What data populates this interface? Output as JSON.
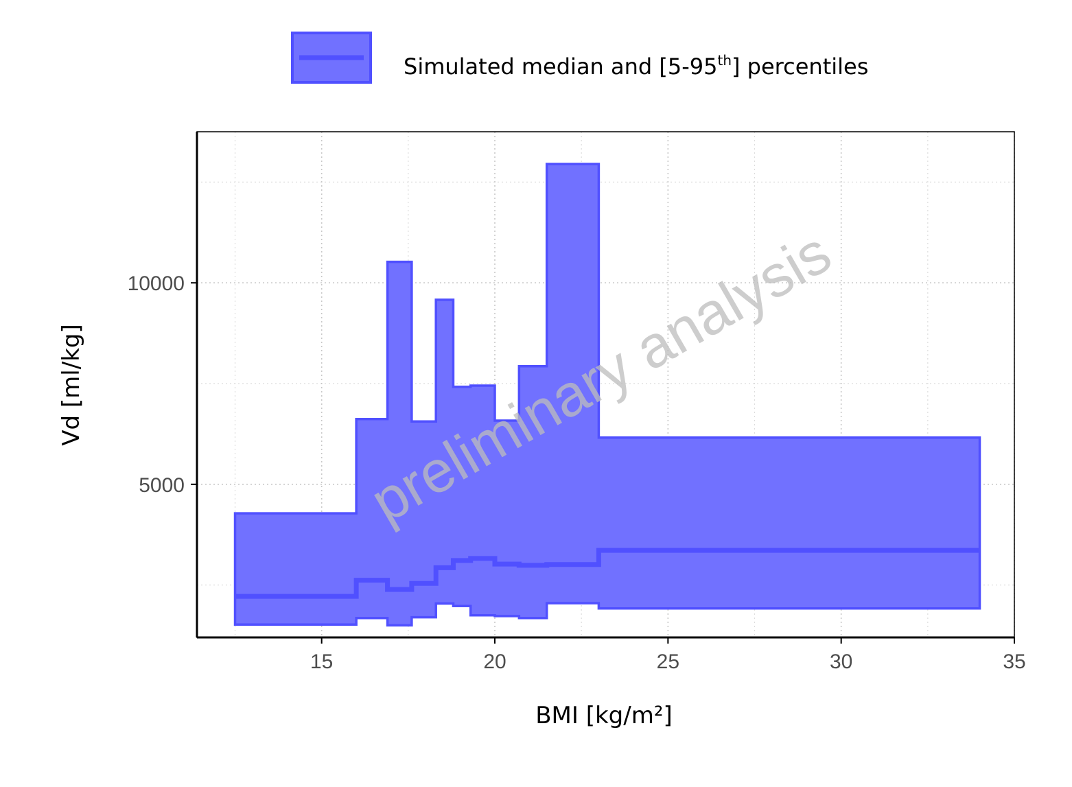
{
  "chart_data": {
    "type": "area",
    "xlabel": "BMI [kg/m²]",
    "ylabel": "Vd [ml/kg]",
    "xlim": [
      11.4,
      35
    ],
    "ylim": [
      1200,
      13750
    ],
    "x_ticks": [
      15,
      20,
      25,
      30,
      35
    ],
    "x_tick_labels": [
      "15",
      "20",
      "25",
      "30",
      "35"
    ],
    "y_ticks": [
      5000,
      10000
    ],
    "y_tick_labels": [
      "5000",
      "10000"
    ],
    "grid": true,
    "legend_position": "top",
    "legend": [
      {
        "label_main": "Simulated median and [5-95",
        "label_sup": "th",
        "label_end": "] percentiles"
      }
    ],
    "watermark": "preliminary analysis",
    "fill_color": "#7171FF",
    "line_color": "#5050FF",
    "series": [
      {
        "x_start": 12.5,
        "x_end": 16.0,
        "p05": 1520,
        "median": 2220,
        "p95": 4280
      },
      {
        "x_start": 16.0,
        "x_end": 16.9,
        "p05": 1680,
        "median": 2620,
        "p95": 6620
      },
      {
        "x_start": 16.9,
        "x_end": 17.6,
        "p05": 1500,
        "median": 2390,
        "p95": 10520
      },
      {
        "x_start": 17.6,
        "x_end": 18.3,
        "p05": 1700,
        "median": 2540,
        "p95": 6560
      },
      {
        "x_start": 18.3,
        "x_end": 18.8,
        "p05": 2040,
        "median": 2930,
        "p95": 9580
      },
      {
        "x_start": 18.8,
        "x_end": 19.3,
        "p05": 1980,
        "median": 3110,
        "p95": 7420
      },
      {
        "x_start": 19.3,
        "x_end": 20.0,
        "p05": 1750,
        "median": 3160,
        "p95": 7450
      },
      {
        "x_start": 20.0,
        "x_end": 20.7,
        "p05": 1730,
        "median": 3020,
        "p95": 6580
      },
      {
        "x_start": 20.7,
        "x_end": 21.5,
        "p05": 1680,
        "median": 2990,
        "p95": 7930
      },
      {
        "x_start": 21.5,
        "x_end": 23.0,
        "p05": 2050,
        "median": 3010,
        "p95": 12950
      },
      {
        "x_start": 23.0,
        "x_end": 34.0,
        "p05": 1920,
        "median": 3360,
        "p95": 6160
      }
    ]
  }
}
